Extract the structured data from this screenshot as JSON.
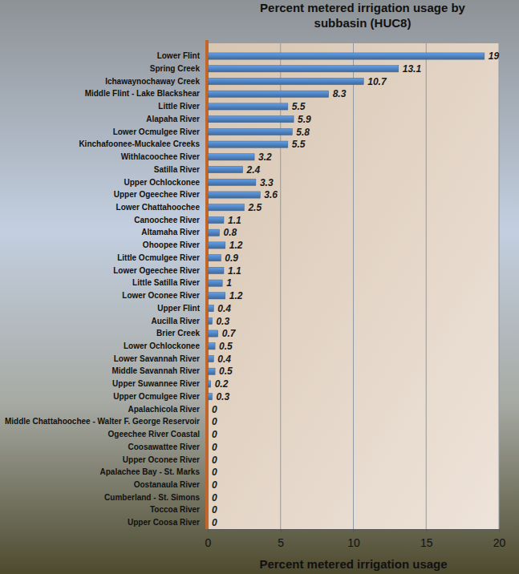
{
  "chart_data": {
    "type": "bar",
    "orientation": "horizontal",
    "title": "Percent metered irrigation usage by subbasin (HUC8)",
    "x_label": "Percent metered irrigation usage",
    "categories": [
      "Lower Flint",
      "Spring Creek",
      "Ichawaynochaway Creek",
      "Middle Flint - Lake Blackshear",
      "Little River",
      "Alapaha River",
      "Lower Ocmulgee River",
      "Kinchafoonee-Muckalee Creeks",
      "Withlacoochee River",
      "Satilla River",
      "Upper Ochlockonee",
      "Upper Ogeechee River",
      "Lower Chattahoochee",
      "Canoochee River",
      "Altamaha River",
      "Ohoopee River",
      "Little Ocmulgee River",
      "Lower Ogeechee River",
      "Little Satilla River",
      "Lower Oconee River",
      "Upper Flint",
      "Aucilla River",
      "Brier Creek",
      "Lower Ochlockonee",
      "Lower Savannah River",
      "Middle Savannah River",
      "Upper Suwannee River",
      "Upper Ocmulgee River",
      "Apalachicola River",
      "Middle Chattahoochee - Walter F. George Reservoir",
      "Ogeechee River Coastal",
      "Coosawattee River",
      "Upper Oconee River",
      "Apalachee Bay - St. Marks",
      "Oostanaula River",
      "Cumberland - St. Simons",
      "Toccoa River",
      "Upper Coosa River"
    ],
    "values": [
      19,
      13.1,
      10.7,
      8.3,
      5.5,
      5.9,
      5.8,
      5.5,
      3.2,
      2.4,
      3.3,
      3.6,
      2.5,
      1.1,
      0.8,
      1.2,
      0.9,
      1.1,
      1,
      1.2,
      0.4,
      0.3,
      0.7,
      0.5,
      0.4,
      0.5,
      0.2,
      0.3,
      0,
      0,
      0,
      0,
      0,
      0,
      0,
      0,
      0,
      0
    ],
    "color": "#4f81bd",
    "xlim": [
      0,
      20
    ],
    "xticks": [
      0,
      5,
      10,
      15,
      20
    ],
    "grid": true,
    "data_labels": true
  }
}
